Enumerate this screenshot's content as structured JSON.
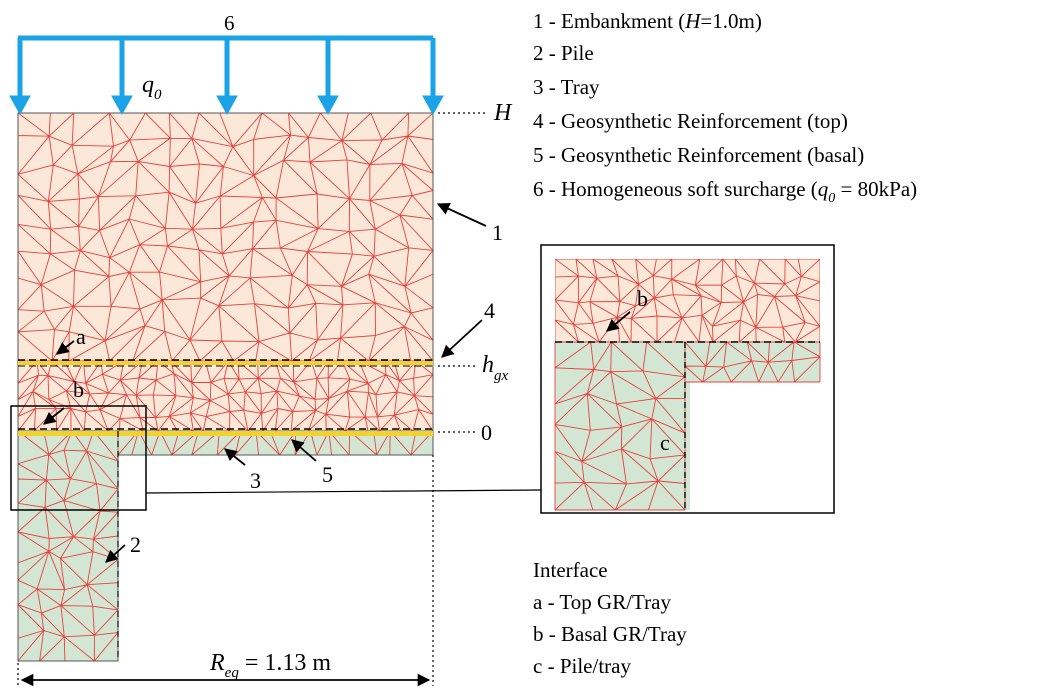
{
  "colors": {
    "embankment": "#fbe8d9",
    "pile": "#d3e6d4",
    "mesh": "#e8413a",
    "load": "#1aa3e6",
    "geogrid": "#f2d22e",
    "outline": "#555555"
  },
  "diagram": {
    "load_number": "6",
    "load_symbol": "q",
    "load_subscript": "0",
    "height_symbol": "H",
    "hgx_symbol": "h",
    "hgx_subscript": "gx",
    "zero_label": "0",
    "callouts": {
      "c1": "1",
      "c2": "2",
      "c3": "3",
      "c4": "4",
      "c5": "5",
      "ia": "a",
      "ib": "b",
      "inset_b": "b",
      "inset_c": "c"
    },
    "dimension": {
      "symbol": "R",
      "subscript": "eq",
      "value_text": " = 1.13 m"
    }
  },
  "legend": {
    "items": [
      {
        "num": "1",
        "pre": "1 - Embankment (",
        "italic": "H",
        "post": "=1.0m)"
      },
      {
        "num": "2",
        "text": "2 - Pile"
      },
      {
        "num": "3",
        "text": "3 - Tray"
      },
      {
        "num": "4",
        "text": "4 - Geosynthetic Reinforcement (top)"
      },
      {
        "num": "5",
        "text": "5 - Geosynthetic Reinforcement (basal)"
      },
      {
        "num": "6",
        "pre": "6 - Homogeneous soft surcharge (",
        "italic": "q",
        "sub": "0",
        "post": " = 80kPa)"
      }
    ]
  },
  "interface": {
    "title": "Interface",
    "items": [
      "a - Top GR/Tray",
      "b - Basal GR/Tray",
      "c - Pile/tray"
    ]
  }
}
